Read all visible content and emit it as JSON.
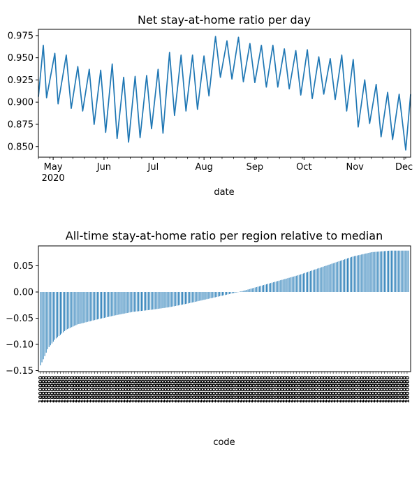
{
  "chart_data": [
    {
      "type": "line",
      "title": "Net stay-at-home ratio per day",
      "xlabel": "date",
      "ylabel": "",
      "x_start": "2020-04-22",
      "x_end": "2020-12-05",
      "ylim": [
        0.838,
        0.982
      ],
      "yticks": [
        0.85,
        0.875,
        0.9,
        0.925,
        0.95,
        0.975
      ],
      "ytick_labels": [
        "0.850",
        "0.875",
        "0.900",
        "0.925",
        "0.950",
        "0.975"
      ],
      "xticks": [
        {
          "date": "2020-05-01",
          "label": "May",
          "sublabel": "2020"
        },
        {
          "date": "2020-06-01",
          "label": "Jun",
          "sublabel": ""
        },
        {
          "date": "2020-07-01",
          "label": "Jul",
          "sublabel": ""
        },
        {
          "date": "2020-08-01",
          "label": "Aug",
          "sublabel": ""
        },
        {
          "date": "2020-09-01",
          "label": "Sep",
          "sublabel": ""
        },
        {
          "date": "2020-10-01",
          "label": "Oct",
          "sublabel": ""
        },
        {
          "date": "2020-11-01",
          "label": "Nov",
          "sublabel": ""
        },
        {
          "date": "2020-12-01",
          "label": "Dec",
          "sublabel": ""
        }
      ],
      "color": "#1f77b4",
      "weekly_points": [
        {
          "date": "2020-04-22",
          "y": 0.906
        },
        {
          "date": "2020-04-25",
          "y": 0.964
        },
        {
          "date": "2020-04-27",
          "y": 0.905
        },
        {
          "date": "2020-05-02",
          "y": 0.955
        },
        {
          "date": "2020-05-04",
          "y": 0.898
        },
        {
          "date": "2020-05-09",
          "y": 0.953
        },
        {
          "date": "2020-05-12",
          "y": 0.893
        },
        {
          "date": "2020-05-16",
          "y": 0.94
        },
        {
          "date": "2020-05-19",
          "y": 0.89
        },
        {
          "date": "2020-05-23",
          "y": 0.937
        },
        {
          "date": "2020-05-26",
          "y": 0.875
        },
        {
          "date": "2020-05-30",
          "y": 0.936
        },
        {
          "date": "2020-06-02",
          "y": 0.866
        },
        {
          "date": "2020-06-06",
          "y": 0.943
        },
        {
          "date": "2020-06-09",
          "y": 0.859
        },
        {
          "date": "2020-06-13",
          "y": 0.928
        },
        {
          "date": "2020-06-16",
          "y": 0.855
        },
        {
          "date": "2020-06-20",
          "y": 0.929
        },
        {
          "date": "2020-06-23",
          "y": 0.86
        },
        {
          "date": "2020-06-27",
          "y": 0.93
        },
        {
          "date": "2020-06-30",
          "y": 0.87
        },
        {
          "date": "2020-07-04",
          "y": 0.937
        },
        {
          "date": "2020-07-07",
          "y": 0.865
        },
        {
          "date": "2020-07-11",
          "y": 0.956
        },
        {
          "date": "2020-07-14",
          "y": 0.885
        },
        {
          "date": "2020-07-18",
          "y": 0.953
        },
        {
          "date": "2020-07-21",
          "y": 0.89
        },
        {
          "date": "2020-07-25",
          "y": 0.953
        },
        {
          "date": "2020-07-28",
          "y": 0.892
        },
        {
          "date": "2020-08-01",
          "y": 0.952
        },
        {
          "date": "2020-08-04",
          "y": 0.907
        },
        {
          "date": "2020-08-08",
          "y": 0.974
        },
        {
          "date": "2020-08-11",
          "y": 0.928
        },
        {
          "date": "2020-08-15",
          "y": 0.969
        },
        {
          "date": "2020-08-18",
          "y": 0.926
        },
        {
          "date": "2020-08-22",
          "y": 0.973
        },
        {
          "date": "2020-08-25",
          "y": 0.923
        },
        {
          "date": "2020-08-29",
          "y": 0.966
        },
        {
          "date": "2020-09-01",
          "y": 0.922
        },
        {
          "date": "2020-09-05",
          "y": 0.964
        },
        {
          "date": "2020-09-08",
          "y": 0.917
        },
        {
          "date": "2020-09-12",
          "y": 0.964
        },
        {
          "date": "2020-09-15",
          "y": 0.917
        },
        {
          "date": "2020-09-19",
          "y": 0.96
        },
        {
          "date": "2020-09-22",
          "y": 0.915
        },
        {
          "date": "2020-09-26",
          "y": 0.958
        },
        {
          "date": "2020-09-29",
          "y": 0.908
        },
        {
          "date": "2020-10-03",
          "y": 0.959
        },
        {
          "date": "2020-10-06",
          "y": 0.904
        },
        {
          "date": "2020-10-10",
          "y": 0.951
        },
        {
          "date": "2020-10-13",
          "y": 0.909
        },
        {
          "date": "2020-10-17",
          "y": 0.949
        },
        {
          "date": "2020-10-20",
          "y": 0.903
        },
        {
          "date": "2020-10-24",
          "y": 0.953
        },
        {
          "date": "2020-10-27",
          "y": 0.89
        },
        {
          "date": "2020-10-31",
          "y": 0.948
        },
        {
          "date": "2020-11-03",
          "y": 0.872
        },
        {
          "date": "2020-11-07",
          "y": 0.925
        },
        {
          "date": "2020-11-10",
          "y": 0.876
        },
        {
          "date": "2020-11-14",
          "y": 0.92
        },
        {
          "date": "2020-11-17",
          "y": 0.861
        },
        {
          "date": "2020-11-21",
          "y": 0.911
        },
        {
          "date": "2020-11-24",
          "y": 0.858
        },
        {
          "date": "2020-11-28",
          "y": 0.909
        },
        {
          "date": "2020-12-02",
          "y": 0.846
        },
        {
          "date": "2020-12-05",
          "y": 0.909
        }
      ]
    },
    {
      "type": "bar",
      "title": "All-time stay-at-home ratio per region relative to median",
      "xlabel": "code",
      "ylabel": "",
      "ylim": [
        -0.152,
        0.088
      ],
      "yticks": [
        -0.15,
        -0.1,
        -0.05,
        0.0,
        0.05
      ],
      "ytick_labels": [
        "−0.15",
        "−0.10",
        "−0.05",
        "0.00",
        "0.05"
      ],
      "color": "#1f77b4",
      "category_label_text": "1000000",
      "bar_count": 260,
      "value_profile": [
        {
          "rank_fraction": 0.0,
          "value": -0.14
        },
        {
          "rank_fraction": 0.01,
          "value": -0.125
        },
        {
          "rank_fraction": 0.02,
          "value": -0.108
        },
        {
          "rank_fraction": 0.04,
          "value": -0.09
        },
        {
          "rank_fraction": 0.07,
          "value": -0.072
        },
        {
          "rank_fraction": 0.1,
          "value": -0.062
        },
        {
          "rank_fraction": 0.15,
          "value": -0.053
        },
        {
          "rank_fraction": 0.2,
          "value": -0.045
        },
        {
          "rank_fraction": 0.25,
          "value": -0.038
        },
        {
          "rank_fraction": 0.3,
          "value": -0.034
        },
        {
          "rank_fraction": 0.35,
          "value": -0.029
        },
        {
          "rank_fraction": 0.4,
          "value": -0.022
        },
        {
          "rank_fraction": 0.45,
          "value": -0.014
        },
        {
          "rank_fraction": 0.5,
          "value": -0.006
        },
        {
          "rank_fraction": 0.55,
          "value": 0.002
        },
        {
          "rank_fraction": 0.6,
          "value": 0.012
        },
        {
          "rank_fraction": 0.65,
          "value": 0.022
        },
        {
          "rank_fraction": 0.7,
          "value": 0.032
        },
        {
          "rank_fraction": 0.75,
          "value": 0.044
        },
        {
          "rank_fraction": 0.8,
          "value": 0.056
        },
        {
          "rank_fraction": 0.85,
          "value": 0.068
        },
        {
          "rank_fraction": 0.9,
          "value": 0.076
        },
        {
          "rank_fraction": 0.95,
          "value": 0.079
        },
        {
          "rank_fraction": 1.0,
          "value": 0.079
        }
      ]
    }
  ]
}
